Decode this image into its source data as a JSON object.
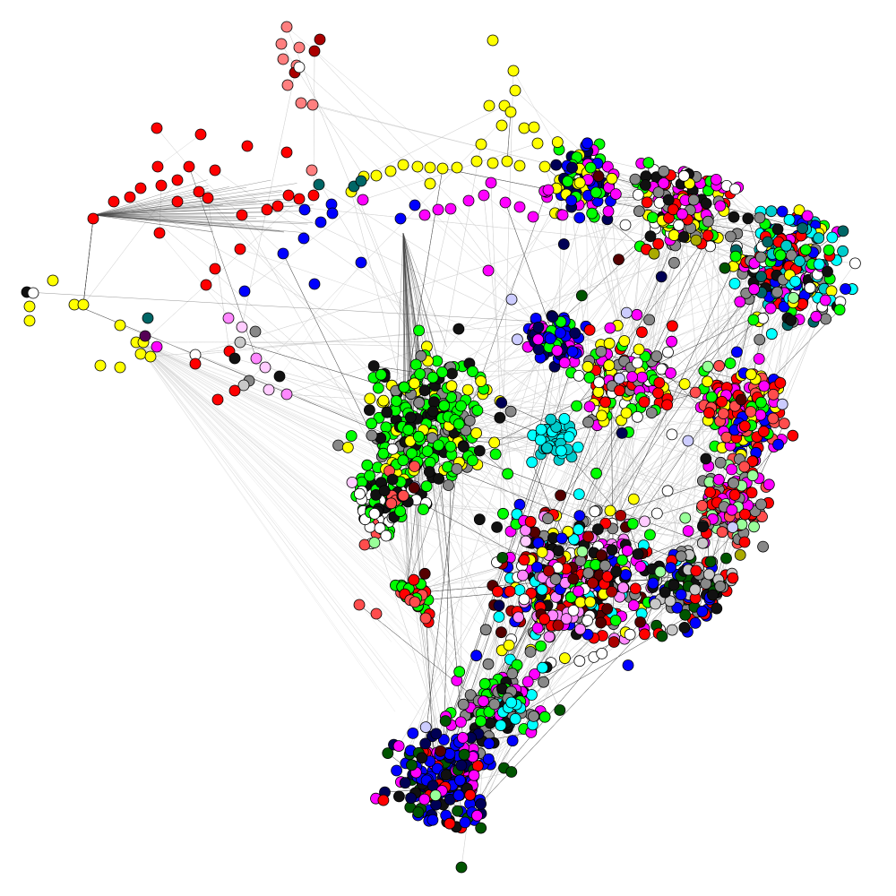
{
  "diagram": {
    "type": "network-graph",
    "description_visible_text": "",
    "palette": {
      "edge_light": "#c8c8c8",
      "edge_dark": "#444444",
      "node_stroke": "#000000",
      "red": "#ff0000",
      "dark_red": "#aa0000",
      "salmon": "#ff7f7f",
      "coral": "#ff4d4d",
      "yellow": "#ffff00",
      "blue": "#0000ff",
      "light_blue": "#6666ff",
      "green": "#00ff00",
      "light_green": "#99ff99",
      "magenta": "#ff00ff",
      "violet": "#ff88ff",
      "gray": "#888888",
      "light_gray": "#c8c8c8",
      "cyan": "#00ffff",
      "teal": "#00cccc",
      "dark_teal": "#006666",
      "dark_green": "#005500",
      "olive": "#aaaa00",
      "navy": "#000055",
      "maroon": "#550000",
      "purple": "#550055",
      "black": "#111111",
      "white": "#ffffff",
      "pink": "#ffccff",
      "lavender": "#ccccff"
    }
  }
}
